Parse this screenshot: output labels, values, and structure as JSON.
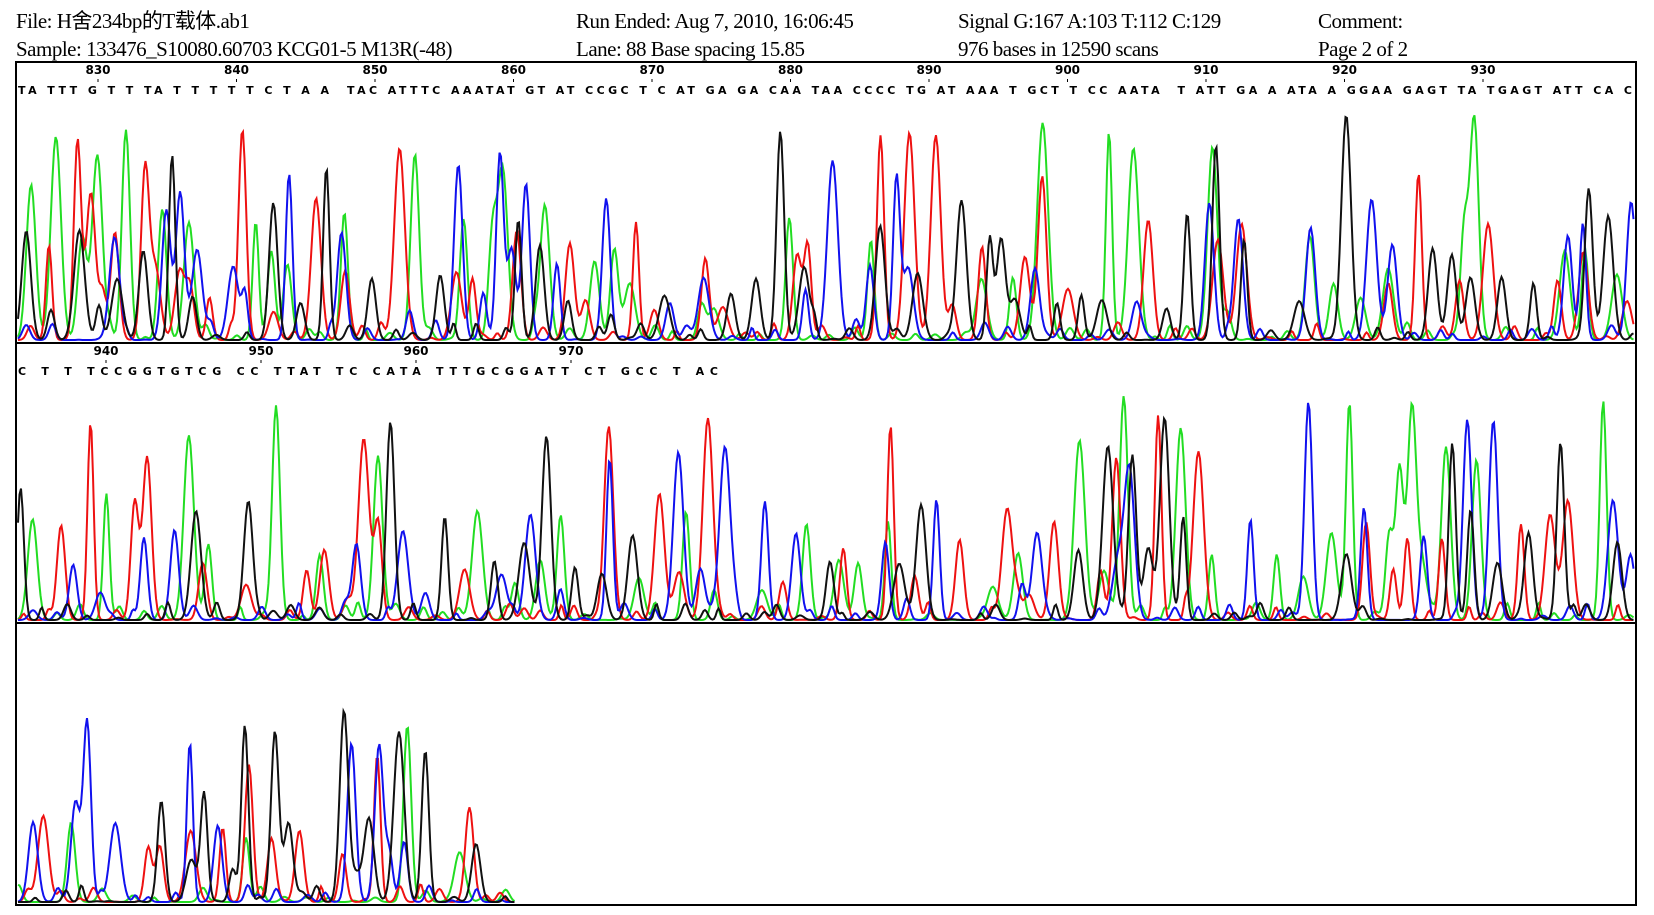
{
  "header": {
    "file": "File: H舍234bp的T载体.ab1",
    "sample": "Sample: 133476_S10080.60703 KCG01-5 M13R(-48)",
    "run_ended": "Run Ended: Aug 7, 2010, 16:06:45",
    "lane": "Lane: 88   Base spacing 15.85",
    "signal": "Signal G:167 A:103 T:112 C:129",
    "bases": "976 bases in 12590 scans",
    "comment": "Comment:",
    "page": "Page 2 of 2"
  },
  "panels": [
    {
      "positions": [
        830,
        840,
        850,
        860,
        870,
        880,
        890,
        900,
        910,
        920,
        930
      ],
      "sequence": "TA TTT G T T TA T T T T T C T A A  TAC ATTTC AAATAT GT AT CCGC T C AT GA GA CAA TAA CCCC TG AT AAA T GCT T CC AATA  T ATT GA A ATA A GGAA GAGT TA TGAGT ATT CA C"
    },
    {
      "positions": [
        940,
        950,
        960,
        970
      ],
      "sequence": "C T T TCCGGTGTCG CC TTAT TC CATA TTTGCGGATT CT GCC T AC"
    },
    {
      "positions": [],
      "sequence": ""
    }
  ]
}
